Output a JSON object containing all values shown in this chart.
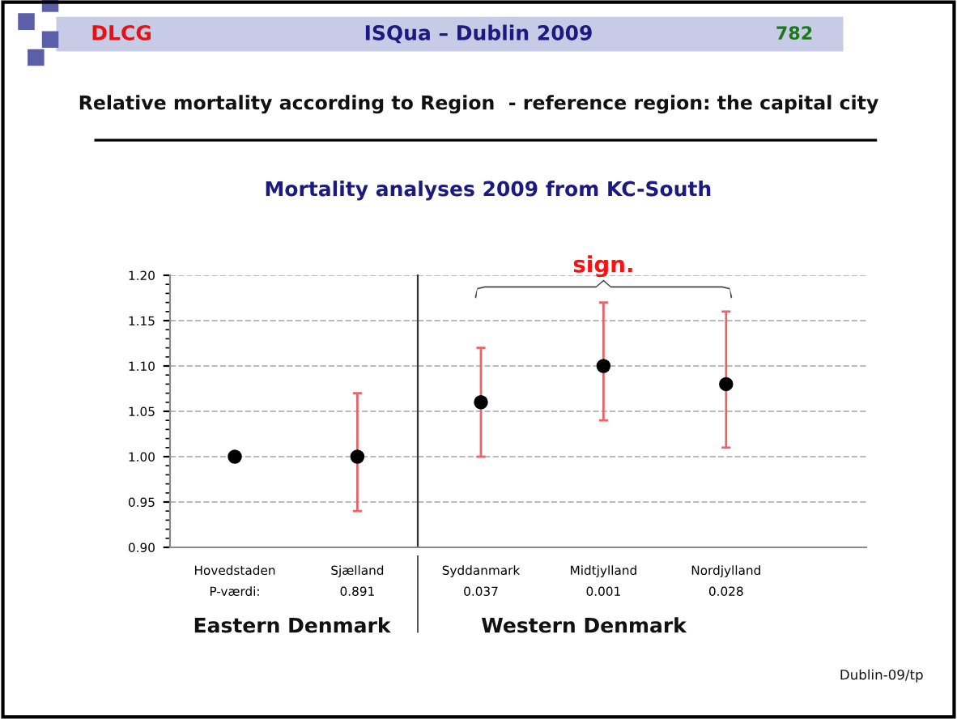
{
  "chart_data": [
    {
      "type": "scatter",
      "title": "Relative mortality according to Region  - reference region: the capital city",
      "subtitle": "Mortality analyses 2009 from KC-South",
      "categories": [
        "Hovedstaden",
        "Sjælland"
      ],
      "series": [
        {
          "color": "#000000",
          "values": [
            1.0,
            1.0
          ],
          "errors": [
            null,
            [
              0.94,
              1.07
            ]
          ]
        }
      ],
      "ylim": [
        0.9,
        1.2
      ],
      "yticks": [
        {
          "value": 0.9,
          "label": "0.90"
        },
        {
          "value": 0.95,
          "label": "0.95"
        },
        {
          "value": 1.0,
          "label": "1.00"
        },
        {
          "value": 1.05,
          "label": "1.05"
        },
        {
          "value": 1.1,
          "label": "1.10"
        },
        {
          "value": 1.15,
          "label": "1.15"
        },
        {
          "value": 1.2,
          "label": "1.20"
        }
      ],
      "grid": "y",
      "marker": "circle",
      "annotations": [
        "DLCG",
        "ISQua – Dublin 2009",
        "782",
        "Eastern Denmark",
        "Dublin-09/tp",
        "P-værdi:",
        "0.891"
      ]
    },
    {
      "type": "scatter",
      "categories": [
        "Syddanmark",
        "Midtjylland",
        "Nordjylland"
      ],
      "series": [
        {
          "color": "#000000",
          "values": [
            1.06,
            1.1,
            1.08
          ],
          "errors": [
            [
              1.0,
              1.12
            ],
            [
              1.04,
              1.17
            ],
            [
              1.01,
              1.16
            ]
          ]
        }
      ],
      "ylim": [
        0.9,
        1.2
      ],
      "yticks": [
        0.9,
        0.95,
        1.0,
        1.05,
        1.1,
        1.15,
        1.2
      ],
      "grid": "y",
      "marker": "circle",
      "tick_labels": "x",
      "annotations": [
        "sign.",
        "Western Denmark",
        "0.037",
        "0.001",
        "0.028"
      ]
    }
  ]
}
